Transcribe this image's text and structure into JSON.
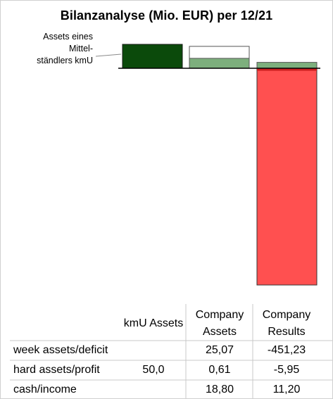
{
  "title": "Bilanzanalyse  (Mio. EUR) per 12/21",
  "annotation": "Assets eines Mittel-ständlers kmU",
  "colors": {
    "kmu_assets": "#0b4a0b",
    "company_assets_fill": "#7daf7d",
    "company_assets_outline": "#555555",
    "company_results_negative": "#ff5050",
    "company_results_positive": "#7daf7d",
    "company_results_marker": "#cc2020",
    "grid": "#c8c8c8"
  },
  "chart_data": {
    "type": "bar",
    "title": "Bilanzanalyse  (Mio. EUR) per 12/21",
    "categories": [
      "kmU Assets",
      "Company Assets",
      "Company Results"
    ],
    "series": [
      {
        "name": "week assets/deficit",
        "values": [
          null,
          25.07,
          -451.23
        ]
      },
      {
        "name": "hard assets/profit",
        "values": [
          50.0,
          0.61,
          -5.95
        ]
      },
      {
        "name": "cash/income",
        "values": [
          null,
          18.8,
          11.2
        ]
      }
    ],
    "legend_placement": "table-below"
  },
  "table": {
    "headers": [
      "kmU Assets",
      "Company\nAssets",
      "Company\nResults"
    ],
    "rows": [
      {
        "label": "week assets/deficit",
        "cells": [
          "",
          "25,07",
          "-451,23"
        ]
      },
      {
        "label": "hard assets/profit",
        "cells": [
          "50,0",
          "0,61",
          "-5,95"
        ]
      },
      {
        "label": "cash/income",
        "cells": [
          "",
          "18,80",
          "11,20"
        ]
      }
    ]
  }
}
